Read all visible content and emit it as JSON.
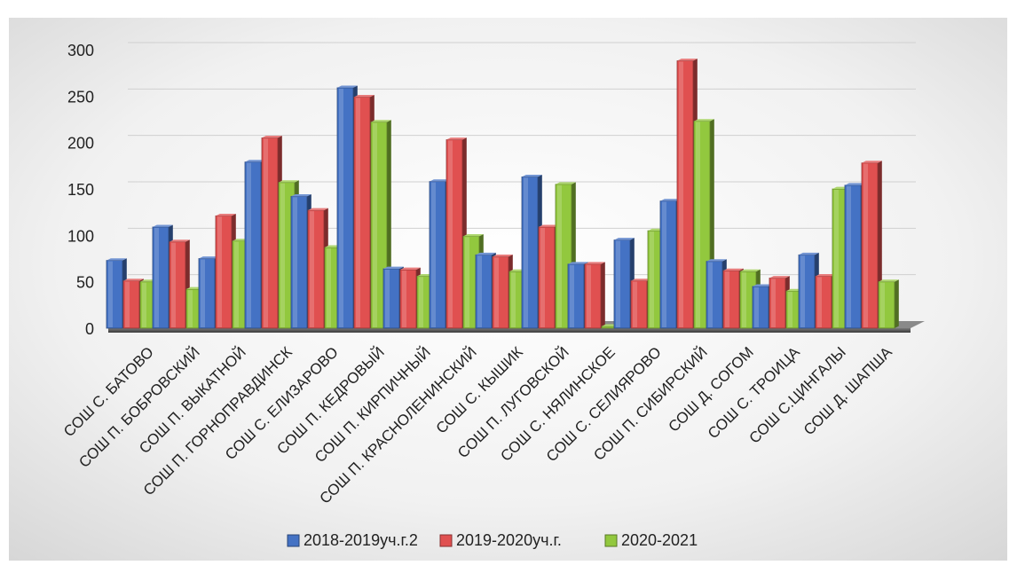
{
  "chart_data": {
    "type": "bar",
    "title": "",
    "xlabel": "",
    "ylabel": "",
    "ylim": [
      0,
      300
    ],
    "yticks": [
      0,
      50,
      100,
      150,
      200,
      250,
      300
    ],
    "grid": true,
    "legend_position": "bottom",
    "categories": [
      "СОШ С. БАТОВО",
      "СОШ П. БОБРОВСКИЙ",
      "СОШ П. ВЫКАТНОЙ",
      "СОШ П. ГОРНОПРАВДИНСК",
      "СОШ С. ЕЛИЗАРОВО",
      "СОШ П. КЕДРОВЫЙ",
      "СОШ П. КИРПИЧНЫЙ",
      "СОШ П. КРАСНОЛЕНИНСКИЙ",
      "СОШ С. КЫШИК",
      "СОШ П. ЛУГОВСКОЙ",
      "СОШ С. НЯЛИНСКОЕ",
      "СОШ С. СЕЛИЯРОВО",
      "СОШ П. СИБИРСКИЙ",
      "СОШ Д. СОГОМ",
      "СОШ С. ТРОИЦА",
      "СОШ С.ЦИНГАЛЫ",
      "СОШ Д. ШАПША"
    ],
    "series": [
      {
        "name": "2018-2019уч.г.2",
        "color": "#4472C4",
        "values": [
          73,
          109,
          75,
          179,
          142,
          259,
          64,
          158,
          79,
          163,
          69,
          95,
          137,
          72,
          45,
          79,
          154
        ]
      },
      {
        "name": "2019-2020уч.г.",
        "color": "#E05050",
        "values": [
          51,
          93,
          121,
          205,
          127,
          249,
          63,
          203,
          77,
          109,
          69,
          51,
          288,
          62,
          54,
          56,
          178
        ]
      },
      {
        "name": "2020-2021",
        "color": "#92C83E",
        "values": [
          50,
          42,
          94,
          157,
          87,
          222,
          56,
          99,
          61,
          155,
          2,
          105,
          223,
          61,
          40,
          150,
          50
        ]
      }
    ]
  }
}
